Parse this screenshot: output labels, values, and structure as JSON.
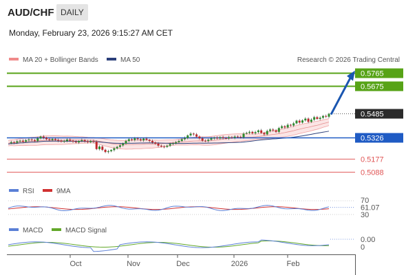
{
  "header": {
    "symbol": "AUD/CHF",
    "period": "DAILY",
    "datetime": "Monday, February 23, 2026 9:15:27 AM CET"
  },
  "legend": {
    "bollinger": "MA 20 + Bollinger Bands",
    "ma50": "MA 50",
    "credit": "Research © 2026 Trading Central",
    "rsi": "RSI",
    "rsi_ma": "9MA",
    "macd": "MACD",
    "macd_signal": "MACD Signal"
  },
  "colors": {
    "green": "#57a317",
    "blue": "#1f5bc4",
    "red": "#e05555",
    "dark": "#2b2b2b",
    "arrow": "#1a56b0",
    "candle_up": "#2e8b2e",
    "candle_down": "#c0282d",
    "band_fill": "#fadcdc",
    "band_line": "#f0a0a0",
    "ma50": "#2b3f7a",
    "rsi_line": "#5a7fd6",
    "rsi_ma": "#d03030",
    "macd_line": "#5a7fd6",
    "macd_signal": "#62a82a"
  },
  "chart_data": {
    "type": "candlestick",
    "price_levels": [
      {
        "value": "0.5765",
        "kind": "resistance",
        "color": "green"
      },
      {
        "value": "0.5675",
        "kind": "resistance",
        "color": "green"
      },
      {
        "value": "0.5485",
        "kind": "last",
        "color": "dark"
      },
      {
        "value": "0.5326",
        "kind": "pivot",
        "color": "blue"
      },
      {
        "value": "0.5177",
        "kind": "support",
        "color": "red"
      },
      {
        "value": "0.5088",
        "kind": "support",
        "color": "red"
      }
    ],
    "x_labels": [
      "Oct",
      "Nov",
      "Dec",
      "2026",
      "Feb"
    ],
    "ohlc_close_path": [
      0.5285,
      0.5292,
      0.5288,
      0.5298,
      0.5302,
      0.5295,
      0.5305,
      0.531,
      0.5306,
      0.53,
      0.5318,
      0.533,
      0.5322,
      0.5312,
      0.5306,
      0.5314,
      0.5308,
      0.5302,
      0.5296,
      0.53,
      0.531,
      0.5302,
      0.5296,
      0.529,
      0.53,
      0.5306,
      0.5298,
      0.5292,
      0.53,
      0.5295,
      0.5245,
      0.5262,
      0.524,
      0.5225,
      0.523,
      0.5238,
      0.525,
      0.526,
      0.527,
      0.5282,
      0.53,
      0.5312,
      0.5306,
      0.5318,
      0.5312,
      0.5304,
      0.5316,
      0.5308,
      0.53,
      0.529,
      0.5282,
      0.5268,
      0.5262,
      0.526,
      0.5268,
      0.528,
      0.5284,
      0.5292,
      0.53,
      0.5312,
      0.532,
      0.5338,
      0.535,
      0.5345,
      0.533,
      0.5318,
      0.5302,
      0.53,
      0.5308,
      0.5318,
      0.5322,
      0.5318,
      0.5326,
      0.532,
      0.5318,
      0.5326,
      0.5322,
      0.533,
      0.5328,
      0.5325,
      0.535,
      0.5355,
      0.5362,
      0.5352,
      0.536,
      0.5372,
      0.5355,
      0.5345,
      0.5368,
      0.5378,
      0.5372,
      0.5362,
      0.5388,
      0.54,
      0.5392,
      0.541,
      0.5405,
      0.542,
      0.5438,
      0.5425,
      0.544,
      0.5452,
      0.543,
      0.5445,
      0.5462,
      0.545,
      0.5458,
      0.547,
      0.5465,
      0.5485
    ],
    "rsi_axis": [
      "70",
      "61.07",
      "30"
    ],
    "rsi_value": "61.07",
    "macd_axis": [
      "0.00",
      "0"
    ],
    "macd_value": "0.00",
    "projection": "arrow from 0.5485 toward 0.5765"
  }
}
